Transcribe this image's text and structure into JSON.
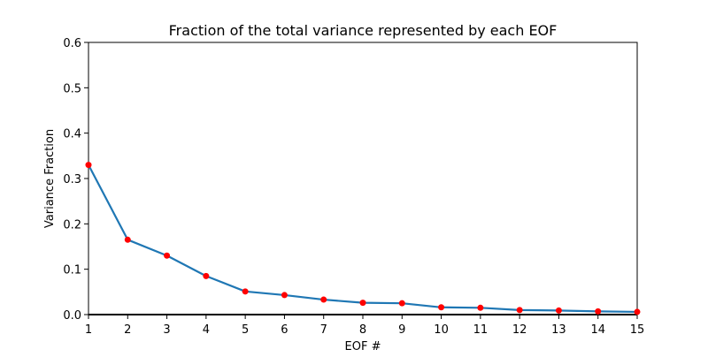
{
  "chart_data": {
    "type": "line",
    "title": "Fraction of the total variance represented by each EOF",
    "xlabel": "EOF #",
    "ylabel": "Variance Fraction",
    "xlim": [
      1,
      15
    ],
    "ylim": [
      0,
      0.6
    ],
    "xticks": [
      "1",
      "2",
      "3",
      "4",
      "5",
      "6",
      "7",
      "8",
      "9",
      "10",
      "11",
      "12",
      "13",
      "14",
      "15"
    ],
    "yticks": [
      "0.0",
      "0.1",
      "0.2",
      "0.3",
      "0.4",
      "0.5",
      "0.6"
    ],
    "grid": false,
    "x": [
      1,
      2,
      3,
      4,
      5,
      6,
      7,
      8,
      9,
      10,
      11,
      12,
      13,
      14,
      15
    ],
    "series": [
      {
        "values": [
          0.33,
          0.165,
          0.13,
          0.085,
          0.051,
          0.043,
          0.033,
          0.026,
          0.025,
          0.016,
          0.015,
          0.01,
          0.009,
          0.007,
          0.006
        ],
        "line_color": "#1f77b4",
        "marker_color": "#ff0000"
      }
    ],
    "baseline": 0
  }
}
